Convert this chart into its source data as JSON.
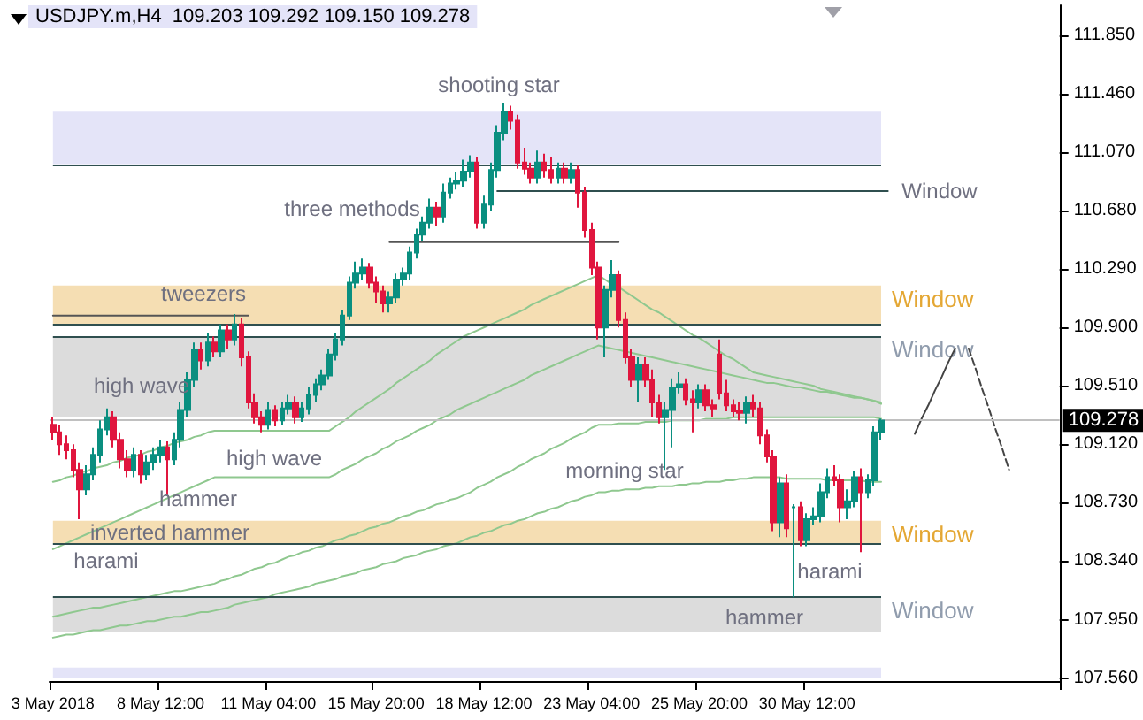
{
  "chart_data": {
    "type": "candlestick",
    "title": "USDJPY.m,H4  109.203 109.292 109.150 109.278",
    "categories": [
      "3 May 2018",
      null,
      null,
      null,
      null,
      null,
      null,
      null,
      null,
      null,
      null,
      null,
      null,
      null,
      null,
      null,
      "8 May 12:00",
      null,
      null,
      null,
      null,
      null,
      null,
      null,
      null,
      null,
      null,
      null,
      null,
      null,
      null,
      null,
      "11 May 04:00",
      null,
      null,
      null,
      null,
      null,
      null,
      null,
      null,
      null,
      null,
      null,
      null,
      null,
      null,
      null,
      "15 May 20:00",
      null,
      null,
      null,
      null,
      null,
      null,
      null,
      null,
      null,
      null,
      null,
      null,
      null,
      null,
      null,
      "18 May 12:00",
      null,
      null,
      null,
      null,
      null,
      null,
      null,
      null,
      null,
      null,
      null,
      null,
      null,
      null,
      null,
      "23 May 04:00",
      null,
      null,
      null,
      null,
      null,
      null,
      null,
      null,
      null,
      null,
      null,
      null,
      null,
      null,
      null,
      "25 May 20:00",
      null,
      null,
      null,
      null,
      null,
      null,
      null,
      null,
      null,
      null,
      null,
      null,
      null,
      null,
      null,
      "30 May 12:00",
      null,
      null,
      null,
      null,
      null,
      null,
      null,
      null,
      null,
      null,
      null,
      null,
      null,
      null,
      null,
      null,
      null,
      null,
      null,
      null,
      null,
      null,
      null,
      null,
      null,
      null,
      null,
      null,
      null,
      null,
      null,
      null,
      null,
      null,
      null,
      null,
      null
    ],
    "ohlc": [
      [
        109.25,
        109.3,
        109.15,
        109.2
      ],
      [
        109.2,
        109.25,
        109.05,
        109.12
      ],
      [
        109.12,
        109.18,
        109.02,
        109.08
      ],
      [
        109.08,
        109.12,
        108.9,
        108.95
      ],
      [
        108.95,
        109.0,
        108.62,
        108.82
      ],
      [
        108.82,
        108.98,
        108.78,
        108.92
      ],
      [
        108.92,
        109.1,
        108.88,
        109.05
      ],
      [
        109.05,
        109.28,
        109.0,
        109.22
      ],
      [
        109.22,
        109.36,
        109.18,
        109.3
      ],
      [
        109.3,
        109.34,
        109.1,
        109.15
      ],
      [
        109.15,
        109.2,
        108.96,
        109.02
      ],
      [
        109.02,
        109.08,
        108.9,
        108.95
      ],
      [
        108.95,
        109.1,
        108.9,
        109.05
      ],
      [
        109.05,
        109.08,
        108.86,
        108.92
      ],
      [
        108.92,
        109.05,
        108.88,
        109.0
      ],
      [
        109.0,
        109.1,
        108.95,
        109.05
      ],
      [
        109.05,
        109.15,
        109.0,
        109.1
      ],
      [
        109.1,
        109.14,
        108.78,
        109.02
      ],
      [
        109.02,
        109.2,
        108.98,
        109.15
      ],
      [
        109.15,
        109.4,
        109.1,
        109.35
      ],
      [
        109.35,
        109.6,
        109.3,
        109.55
      ],
      [
        109.55,
        109.8,
        109.5,
        109.75
      ],
      [
        109.75,
        109.8,
        109.62,
        109.68
      ],
      [
        109.68,
        109.86,
        109.64,
        109.8
      ],
      [
        109.8,
        109.84,
        109.7,
        109.74
      ],
      [
        109.74,
        109.92,
        109.7,
        109.88
      ],
      [
        109.88,
        109.92,
        109.76,
        109.82
      ],
      [
        109.82,
        109.99,
        109.78,
        109.92
      ],
      [
        109.92,
        109.96,
        109.64,
        109.7
      ],
      [
        109.7,
        109.74,
        109.36,
        109.4
      ],
      [
        109.4,
        109.46,
        109.26,
        109.3
      ],
      [
        109.3,
        109.34,
        109.2,
        109.25
      ],
      [
        109.25,
        109.4,
        109.22,
        109.35
      ],
      [
        109.35,
        109.38,
        109.24,
        109.28
      ],
      [
        109.28,
        109.4,
        109.25,
        109.36
      ],
      [
        109.36,
        109.45,
        109.32,
        109.4
      ],
      [
        109.4,
        109.44,
        109.26,
        109.3
      ],
      [
        109.3,
        109.4,
        109.27,
        109.36
      ],
      [
        109.36,
        109.5,
        109.32,
        109.45
      ],
      [
        109.45,
        109.56,
        109.4,
        109.52
      ],
      [
        109.52,
        109.62,
        109.48,
        109.58
      ],
      [
        109.58,
        109.76,
        109.55,
        109.72
      ],
      [
        109.72,
        109.86,
        109.68,
        109.82
      ],
      [
        109.82,
        110.02,
        109.78,
        109.98
      ],
      [
        109.98,
        110.24,
        109.95,
        110.2
      ],
      [
        110.2,
        110.34,
        110.16,
        110.26
      ],
      [
        110.26,
        110.36,
        110.22,
        110.3
      ],
      [
        110.3,
        110.33,
        110.16,
        110.2
      ],
      [
        110.2,
        110.24,
        110.06,
        110.14
      ],
      [
        110.14,
        110.18,
        110.0,
        110.06
      ],
      [
        110.06,
        110.14,
        110.0,
        110.1
      ],
      [
        110.1,
        110.26,
        110.06,
        110.22
      ],
      [
        110.22,
        110.3,
        110.18,
        110.26
      ],
      [
        110.26,
        110.44,
        110.22,
        110.4
      ],
      [
        110.4,
        110.56,
        110.36,
        110.52
      ],
      [
        110.52,
        110.64,
        110.48,
        110.6
      ],
      [
        110.6,
        110.76,
        110.56,
        110.7
      ],
      [
        110.7,
        110.74,
        110.58,
        110.64
      ],
      [
        110.64,
        110.86,
        110.6,
        110.8
      ],
      [
        110.8,
        110.9,
        110.76,
        110.86
      ],
      [
        110.86,
        110.94,
        110.82,
        110.88
      ],
      [
        110.88,
        111.02,
        110.84,
        110.94
      ],
      [
        110.94,
        111.05,
        110.9,
        111.0
      ],
      [
        111.0,
        111.04,
        110.56,
        110.6
      ],
      [
        110.6,
        110.78,
        110.56,
        110.72
      ],
      [
        110.72,
        111.0,
        110.68,
        110.95
      ],
      [
        110.95,
        111.25,
        110.9,
        111.2
      ],
      [
        111.2,
        111.4,
        111.15,
        111.34
      ],
      [
        111.34,
        111.38,
        111.22,
        111.28
      ],
      [
        111.28,
        111.32,
        110.96,
        111.0
      ],
      [
        111.0,
        111.1,
        110.92,
        110.96
      ],
      [
        110.96,
        111.0,
        110.86,
        110.9
      ],
      [
        110.9,
        111.08,
        110.86,
        111.0
      ],
      [
        111.0,
        111.06,
        110.9,
        110.95
      ],
      [
        110.95,
        111.04,
        110.86,
        110.9
      ],
      [
        110.9,
        111.0,
        110.86,
        110.96
      ],
      [
        110.96,
        111.0,
        110.86,
        110.9
      ],
      [
        110.9,
        111.0,
        110.86,
        110.95
      ],
      [
        110.95,
        110.98,
        110.7,
        110.8
      ],
      [
        110.8,
        110.84,
        110.5,
        110.55
      ],
      [
        110.55,
        110.6,
        110.25,
        110.3
      ],
      [
        110.3,
        110.34,
        109.82,
        109.9
      ],
      [
        109.9,
        110.18,
        109.7,
        110.15
      ],
      [
        110.15,
        110.35,
        110.1,
        110.25
      ],
      [
        110.25,
        110.28,
        109.9,
        109.95
      ],
      [
        109.95,
        110.0,
        109.66,
        109.7
      ],
      [
        109.7,
        109.76,
        109.5,
        109.55
      ],
      [
        109.55,
        109.7,
        109.4,
        109.65
      ],
      [
        109.65,
        109.7,
        109.5,
        109.55
      ],
      [
        109.55,
        109.62,
        109.3,
        109.4
      ],
      [
        109.4,
        109.45,
        109.26,
        109.3
      ],
      [
        109.3,
        109.4,
        108.95,
        109.35
      ],
      [
        109.35,
        109.56,
        109.1,
        109.5
      ],
      [
        109.5,
        109.6,
        109.46,
        109.52
      ],
      [
        109.52,
        109.56,
        109.38,
        109.42
      ],
      [
        109.42,
        109.48,
        109.2,
        109.4
      ],
      [
        109.4,
        109.52,
        109.36,
        109.48
      ],
      [
        109.48,
        109.52,
        109.34,
        109.38
      ],
      [
        109.38,
        109.42,
        109.3,
        109.36
      ],
      [
        109.72,
        109.82,
        109.42,
        109.46
      ],
      [
        109.46,
        109.55,
        109.34,
        109.38
      ],
      [
        109.38,
        109.42,
        109.3,
        109.34
      ],
      [
        109.34,
        109.4,
        109.28,
        109.33
      ],
      [
        109.33,
        109.44,
        109.26,
        109.4
      ],
      [
        109.4,
        109.45,
        109.3,
        109.36
      ],
      [
        109.36,
        109.4,
        109.12,
        109.18
      ],
      [
        109.18,
        109.22,
        109.0,
        109.04
      ],
      [
        109.04,
        109.08,
        108.54,
        108.6
      ],
      [
        108.6,
        108.9,
        108.5,
        108.86
      ],
      [
        108.86,
        108.92,
        108.5,
        108.56
      ],
      [
        108.7,
        108.72,
        108.1,
        108.7
      ],
      [
        108.7,
        108.74,
        108.44,
        108.48
      ],
      [
        108.48,
        108.66,
        108.44,
        108.62
      ],
      [
        108.62,
        108.7,
        108.58,
        108.64
      ],
      [
        108.64,
        108.86,
        108.6,
        108.8
      ],
      [
        108.8,
        108.96,
        108.76,
        108.9
      ],
      [
        108.9,
        108.98,
        108.84,
        108.88
      ],
      [
        108.88,
        108.92,
        108.6,
        108.7
      ],
      [
        108.7,
        108.82,
        108.62,
        108.74
      ],
      [
        108.74,
        108.94,
        108.7,
        108.9
      ],
      [
        108.9,
        108.96,
        108.4,
        108.8
      ],
      [
        108.8,
        108.92,
        108.76,
        108.88
      ],
      [
        108.88,
        109.24,
        108.84,
        109.2
      ],
      [
        109.203,
        109.292,
        109.15,
        109.278
      ],
      null,
      null,
      null,
      null,
      null,
      null,
      null,
      null,
      null,
      null,
      null,
      null,
      null,
      null,
      null,
      null,
      null,
      null,
      null,
      null,
      null,
      null,
      null,
      null,
      null,
      null
    ],
    "series": [
      {
        "type": "line",
        "color": "#8fc88f",
        "values": [
          108.87,
          108.88,
          108.9,
          108.91,
          108.93,
          108.94,
          108.96,
          108.97,
          108.98,
          109.0,
          109.01,
          109.03,
          109.04,
          109.05,
          109.07,
          109.08,
          109.1,
          109.11,
          109.13,
          109.14,
          109.15,
          109.17,
          109.18,
          109.2,
          109.21,
          109.21,
          109.21,
          109.21,
          109.21,
          109.21,
          109.21,
          109.21,
          109.21,
          109.21,
          109.21,
          109.21,
          109.21,
          109.21,
          109.21,
          109.21,
          109.21,
          109.21,
          109.24,
          109.27,
          109.3,
          109.34,
          109.37,
          109.4,
          109.43,
          109.46,
          109.49,
          109.53,
          109.56,
          109.59,
          109.62,
          109.65,
          109.68,
          109.72,
          109.75,
          109.78,
          109.81,
          109.84,
          109.86,
          109.88,
          109.9,
          109.92,
          109.94,
          109.96,
          109.98,
          110.0,
          110.02,
          110.05,
          110.07,
          110.09,
          110.11,
          110.13,
          110.15,
          110.17,
          110.19,
          110.21,
          110.23,
          110.25,
          110.22,
          110.19,
          110.17,
          110.14,
          110.11,
          110.08,
          110.05,
          110.02,
          110.0,
          109.97,
          109.94,
          109.91,
          109.88,
          109.85,
          109.83,
          109.8,
          109.77,
          109.74,
          109.71,
          109.69,
          109.66,
          109.63,
          109.6,
          109.59,
          109.58,
          109.57,
          109.56,
          109.55,
          109.54,
          109.53,
          109.52,
          109.51,
          109.49,
          109.48,
          109.47,
          109.46,
          109.45,
          109.44,
          109.43,
          109.42,
          109.41,
          109.4,
          null,
          null,
          null,
          null,
          null,
          null,
          null,
          null,
          null,
          null,
          null,
          null,
          null,
          null,
          null,
          null,
          null,
          null,
          null,
          null,
          null,
          null,
          null,
          null,
          null,
          null
        ]
      },
      {
        "type": "line",
        "color": "#8fc88f",
        "values": [
          108.42,
          108.44,
          108.46,
          108.48,
          108.5,
          108.52,
          108.54,
          108.56,
          108.58,
          108.6,
          108.62,
          108.64,
          108.66,
          108.68,
          108.7,
          108.72,
          108.74,
          108.76,
          108.78,
          108.8,
          108.82,
          108.84,
          108.86,
          108.88,
          108.9,
          108.9,
          108.9,
          108.9,
          108.9,
          108.9,
          108.9,
          108.9,
          108.9,
          108.9,
          108.9,
          108.9,
          108.9,
          108.9,
          108.9,
          108.9,
          108.9,
          108.9,
          108.92,
          108.95,
          108.97,
          108.99,
          109.02,
          109.04,
          109.06,
          109.09,
          109.11,
          109.14,
          109.16,
          109.18,
          109.21,
          109.23,
          109.25,
          109.28,
          109.3,
          109.32,
          109.35,
          109.37,
          109.39,
          109.41,
          109.43,
          109.45,
          109.47,
          109.49,
          109.51,
          109.53,
          109.55,
          109.58,
          109.6,
          109.62,
          109.64,
          109.66,
          109.68,
          109.7,
          109.72,
          109.74,
          109.76,
          109.78,
          109.77,
          109.76,
          109.75,
          109.74,
          109.73,
          109.72,
          109.71,
          109.7,
          109.69,
          109.68,
          109.67,
          109.66,
          109.65,
          109.64,
          109.63,
          109.62,
          109.61,
          109.6,
          109.59,
          109.58,
          109.57,
          109.56,
          109.55,
          109.54,
          109.53,
          109.53,
          109.52,
          109.51,
          109.5,
          109.5,
          109.49,
          109.48,
          109.47,
          109.47,
          109.46,
          109.45,
          109.44,
          109.43,
          109.43,
          109.42,
          109.41,
          109.39,
          null,
          null,
          null,
          null,
          null,
          null,
          null,
          null,
          null,
          null,
          null,
          null,
          null,
          null,
          null,
          null,
          null,
          null,
          null,
          null,
          null,
          null,
          null,
          null,
          null,
          null
        ]
      },
      {
        "type": "line",
        "color": "#8fc88f",
        "values": [
          107.97,
          107.98,
          107.99,
          108.0,
          108.01,
          108.02,
          108.03,
          108.03,
          108.04,
          108.05,
          108.06,
          108.07,
          108.08,
          108.09,
          108.1,
          108.11,
          108.12,
          108.13,
          108.14,
          108.14,
          108.15,
          108.16,
          108.17,
          108.18,
          108.19,
          108.21,
          108.22,
          108.24,
          108.25,
          108.27,
          108.29,
          108.3,
          108.32,
          108.33,
          108.35,
          108.37,
          108.38,
          108.4,
          108.41,
          108.43,
          108.44,
          108.46,
          108.48,
          108.49,
          108.51,
          108.52,
          108.54,
          108.56,
          108.57,
          108.59,
          108.6,
          108.62,
          108.64,
          108.65,
          108.67,
          108.68,
          108.7,
          108.72,
          108.73,
          108.75,
          108.76,
          108.78,
          108.8,
          108.83,
          108.85,
          108.87,
          108.9,
          108.92,
          108.94,
          108.97,
          108.99,
          109.02,
          109.04,
          109.06,
          109.09,
          109.11,
          109.13,
          109.16,
          109.18,
          109.2,
          109.23,
          109.25,
          109.25,
          109.25,
          109.26,
          109.26,
          109.26,
          109.26,
          109.27,
          109.27,
          109.27,
          109.27,
          109.28,
          109.28,
          109.28,
          109.28,
          109.28,
          109.29,
          109.29,
          109.29,
          109.29,
          109.3,
          109.3,
          109.3,
          109.3,
          109.3,
          109.3,
          109.3,
          109.3,
          109.3,
          109.3,
          109.3,
          109.3,
          109.3,
          109.3,
          109.3,
          109.3,
          109.3,
          109.3,
          109.3,
          109.3,
          109.3,
          109.3,
          109.29,
          null,
          null,
          null,
          null,
          null,
          null,
          null,
          null,
          null,
          null,
          null,
          null,
          null,
          null,
          null,
          null,
          null,
          null,
          null,
          null,
          null,
          null,
          null,
          null,
          null,
          null
        ]
      },
      {
        "type": "line",
        "color": "#8fc88f",
        "values": [
          107.83,
          107.84,
          107.85,
          107.85,
          107.86,
          107.87,
          107.88,
          107.88,
          107.89,
          107.9,
          107.91,
          107.91,
          107.92,
          107.93,
          107.94,
          107.94,
          107.95,
          107.96,
          107.97,
          107.97,
          107.98,
          107.99,
          108.0,
          108.0,
          108.01,
          108.02,
          108.03,
          108.05,
          108.06,
          108.07,
          108.08,
          108.09,
          108.1,
          108.12,
          108.13,
          108.14,
          108.15,
          108.16,
          108.17,
          108.19,
          108.2,
          108.21,
          108.22,
          108.24,
          108.25,
          108.26,
          108.28,
          108.29,
          108.3,
          108.32,
          108.33,
          108.34,
          108.36,
          108.37,
          108.38,
          108.4,
          108.41,
          108.42,
          108.44,
          108.45,
          108.46,
          108.48,
          108.5,
          108.51,
          108.53,
          108.54,
          108.56,
          108.58,
          108.59,
          108.61,
          108.62,
          108.64,
          108.66,
          108.67,
          108.69,
          108.7,
          108.72,
          108.74,
          108.75,
          108.77,
          108.78,
          108.8,
          108.8,
          108.81,
          108.81,
          108.82,
          108.82,
          108.82,
          108.83,
          108.83,
          108.84,
          108.84,
          108.84,
          108.85,
          108.85,
          108.86,
          108.86,
          108.87,
          108.87,
          108.87,
          108.88,
          108.88,
          108.89,
          108.89,
          108.9,
          108.9,
          108.9,
          108.9,
          108.9,
          108.89,
          108.89,
          108.89,
          108.89,
          108.89,
          108.89,
          108.88,
          108.88,
          108.88,
          108.88,
          108.88,
          108.88,
          108.87,
          108.87,
          108.87,
          null,
          null,
          null,
          null,
          null,
          null,
          null,
          null,
          null,
          null,
          null,
          null,
          null,
          null,
          null,
          null,
          null,
          null,
          null,
          null,
          null,
          null,
          null,
          null,
          null,
          null
        ]
      },
      {
        "type": "line",
        "color": "#555555",
        "values": [
          109.98,
          109.98,
          109.98,
          109.98,
          109.98,
          109.98,
          109.98,
          109.98,
          109.98,
          109.98,
          109.98,
          109.98,
          109.98,
          109.98,
          109.98,
          109.98,
          109.98,
          109.98,
          109.98,
          109.98,
          109.98,
          109.98,
          109.98,
          109.98,
          109.98,
          109.98,
          109.98,
          109.98,
          109.98,
          109.98,
          null,
          null,
          null,
          null,
          null,
          null,
          null,
          null,
          null,
          null,
          null,
          null,
          null,
          null,
          null,
          null,
          null,
          null,
          null,
          null,
          null,
          null,
          null,
          null,
          null,
          null,
          null,
          null,
          null,
          null,
          null,
          null,
          null,
          null,
          null,
          null,
          null,
          null,
          null,
          null,
          null,
          null,
          null,
          null,
          null,
          null,
          null,
          null,
          null,
          null,
          null,
          null,
          null,
          null,
          null,
          null,
          null,
          null,
          null,
          null,
          null,
          null,
          null,
          null,
          null,
          null,
          null,
          null,
          null,
          null,
          null,
          null,
          null,
          null,
          null,
          null,
          null,
          null,
          null,
          null,
          null,
          null,
          null,
          null,
          null,
          null,
          null,
          null,
          null,
          null,
          null,
          null,
          null,
          null,
          null,
          null,
          null,
          null,
          null,
          null,
          null,
          null,
          null,
          null,
          null,
          null,
          null,
          null,
          null,
          null,
          null,
          null,
          null,
          null,
          null,
          null,
          null,
          null,
          null,
          null
        ]
      },
      {
        "type": "line",
        "color": "#555555",
        "values": [
          null,
          null,
          null,
          null,
          null,
          null,
          null,
          null,
          null,
          null,
          null,
          null,
          null,
          null,
          null,
          null,
          null,
          null,
          null,
          null,
          null,
          null,
          null,
          null,
          null,
          null,
          null,
          null,
          null,
          null,
          null,
          null,
          null,
          null,
          null,
          null,
          null,
          null,
          null,
          null,
          null,
          null,
          null,
          null,
          null,
          null,
          null,
          null,
          null,
          null,
          110.47,
          110.47,
          110.47,
          110.47,
          110.47,
          110.47,
          110.47,
          110.47,
          110.47,
          110.47,
          110.47,
          110.47,
          110.47,
          110.47,
          110.47,
          110.47,
          110.47,
          110.47,
          110.47,
          110.47,
          110.47,
          110.47,
          110.47,
          110.47,
          110.47,
          110.47,
          110.47,
          110.47,
          110.47,
          110.47,
          110.47,
          110.47,
          110.47,
          110.47,
          110.47,
          null,
          null,
          null,
          null,
          null,
          null,
          null,
          null,
          null,
          null,
          null,
          null,
          null,
          null,
          null,
          null,
          null,
          null,
          null,
          null,
          null,
          null,
          null,
          null,
          null,
          null,
          null,
          null,
          null,
          null,
          null,
          null,
          null,
          null,
          null,
          null,
          null,
          null,
          null,
          null,
          null,
          null,
          null,
          null,
          null,
          null,
          null,
          null,
          null,
          null,
          null,
          null,
          null,
          null,
          null,
          null,
          null,
          null,
          null,
          null,
          null,
          null,
          null,
          null,
          null
        ]
      },
      {
        "type": "line",
        "color": "#2f4f4f",
        "values": [
          null,
          null,
          null,
          null,
          null,
          null,
          null,
          null,
          null,
          null,
          null,
          null,
          null,
          null,
          null,
          null,
          null,
          null,
          null,
          null,
          null,
          null,
          null,
          null,
          null,
          null,
          null,
          null,
          null,
          null,
          null,
          null,
          null,
          null,
          null,
          null,
          null,
          null,
          null,
          null,
          null,
          null,
          null,
          null,
          null,
          null,
          null,
          null,
          null,
          null,
          null,
          null,
          null,
          null,
          null,
          null,
          null,
          null,
          null,
          null,
          null,
          null,
          null,
          null,
          null,
          null,
          110.81,
          110.81,
          110.81,
          110.81,
          110.81,
          110.81,
          110.81,
          110.81,
          110.81,
          110.81,
          110.81,
          110.81,
          110.81,
          110.81,
          110.81,
          110.81,
          110.81,
          110.81,
          110.81,
          110.81,
          110.81,
          110.81,
          110.81,
          110.81,
          110.81,
          110.81,
          110.81,
          110.81,
          110.81,
          110.81,
          110.81,
          110.81,
          110.81,
          110.81,
          110.81,
          110.81,
          110.81,
          110.81,
          110.81,
          110.81,
          110.81,
          110.81,
          110.81,
          110.81,
          110.81,
          110.81,
          110.81,
          110.81,
          110.81,
          110.81,
          110.81,
          110.81,
          110.81,
          110.81,
          110.81,
          110.81,
          110.81,
          110.81,
          110.81,
          null,
          null,
          null,
          null,
          null,
          null,
          null,
          null,
          null,
          null,
          null,
          null,
          null,
          null,
          null,
          null,
          null,
          null,
          null,
          null,
          null,
          null,
          null,
          null,
          null
        ]
      },
      {
        "type": "line",
        "color": "#444444",
        "values": [
          null,
          null,
          null,
          null,
          null,
          null,
          null,
          null,
          null,
          null,
          null,
          null,
          null,
          null,
          null,
          null,
          null,
          null,
          null,
          null,
          null,
          null,
          null,
          null,
          null,
          null,
          null,
          null,
          null,
          null,
          null,
          null,
          null,
          null,
          null,
          null,
          null,
          null,
          null,
          null,
          null,
          null,
          null,
          null,
          null,
          null,
          null,
          null,
          null,
          null,
          null,
          null,
          null,
          null,
          null,
          null,
          null,
          null,
          null,
          null,
          null,
          null,
          null,
          null,
          null,
          null,
          null,
          null,
          null,
          null,
          null,
          null,
          null,
          null,
          null,
          null,
          null,
          null,
          null,
          null,
          null,
          null,
          null,
          null,
          null,
          null,
          null,
          null,
          null,
          null,
          null,
          null,
          null,
          null,
          null,
          null,
          null,
          null,
          null,
          null,
          null,
          null,
          null,
          null,
          null,
          null,
          null,
          null,
          null,
          null,
          null,
          null,
          null,
          null,
          null,
          null,
          null,
          null,
          null,
          null,
          null,
          null,
          null,
          null,
          null,
          null,
          null,
          null,
          109.19,
          109.29,
          109.38,
          109.48,
          109.57,
          109.67,
          109.76,
          null,
          null,
          null,
          null,
          null,
          null,
          null,
          null,
          null,
          null,
          null,
          null,
          null,
          null,
          null
        ]
      },
      {
        "type": "line",
        "color": "#444444",
        "line_style": "dashed",
        "values": [
          null,
          null,
          null,
          null,
          null,
          null,
          null,
          null,
          null,
          null,
          null,
          null,
          null,
          null,
          null,
          null,
          null,
          null,
          null,
          null,
          null,
          null,
          null,
          null,
          null,
          null,
          null,
          null,
          null,
          null,
          null,
          null,
          null,
          null,
          null,
          null,
          null,
          null,
          null,
          null,
          null,
          null,
          null,
          null,
          null,
          null,
          null,
          null,
          null,
          null,
          null,
          null,
          null,
          null,
          null,
          null,
          null,
          null,
          null,
          null,
          null,
          null,
          null,
          null,
          null,
          null,
          null,
          null,
          null,
          null,
          null,
          null,
          null,
          null,
          null,
          null,
          null,
          null,
          null,
          null,
          null,
          null,
          null,
          null,
          null,
          null,
          null,
          null,
          null,
          null,
          null,
          null,
          null,
          null,
          null,
          null,
          null,
          null,
          null,
          null,
          null,
          null,
          null,
          null,
          null,
          null,
          null,
          null,
          null,
          null,
          null,
          null,
          null,
          null,
          null,
          null,
          null,
          null,
          null,
          null,
          null,
          null,
          null,
          null,
          null,
          null,
          null,
          null,
          null,
          null,
          null,
          null,
          null,
          null,
          null,
          null,
          109.76,
          109.63,
          109.49,
          109.36,
          109.22,
          109.09,
          108.95,
          null,
          null,
          null,
          null,
          null,
          null,
          null
        ]
      }
    ],
    "bands": [
      {
        "axis": "y",
        "from": 110.99,
        "to": 111.34,
        "color": "#e4e4f8"
      },
      {
        "axis": "y",
        "from": 109.92,
        "to": 110.18,
        "label": "Window",
        "color": "#f5deb3"
      },
      {
        "axis": "y",
        "from": 109.3,
        "to": 109.84,
        "label": "Window",
        "color": "#dcdcdc"
      },
      {
        "axis": "y",
        "from": 108.46,
        "to": 108.61,
        "label": "Window",
        "color": "#f5deb3"
      },
      {
        "axis": "y",
        "from": 107.87,
        "to": 108.1,
        "label": "Window",
        "color": "#dcdcdc"
      },
      {
        "axis": "y",
        "from": 107.56,
        "to": 107.63,
        "color": "#e4e4f8"
      }
    ],
    "ref_lines": [
      {
        "axis": "y",
        "value": 110.99,
        "color": "#2f4f4f"
      },
      {
        "axis": "y",
        "value": 109.92,
        "color": "#2f4f4f"
      },
      {
        "axis": "y",
        "value": 109.84,
        "color": "#2f4f4f"
      },
      {
        "axis": "y",
        "value": 108.46,
        "color": "#2f4f4f"
      },
      {
        "axis": "y",
        "value": 108.1,
        "color": "#2f4f4f"
      },
      {
        "axis": "y",
        "value": 109.278,
        "label": "109.278",
        "color": "#c0c0c0"
      }
    ],
    "annotations": [
      "shooting star",
      "three methods",
      "tweezers",
      "high wave",
      "high wave",
      "hammer",
      "inverted hammer",
      "harami",
      "morning star",
      "harami",
      "hammer",
      "Window"
    ],
    "ylim": [
      107.54,
      112.05
    ],
    "yticks": [
      {
        "value": 107.56,
        "label": "107.560"
      },
      {
        "value": 107.95,
        "label": "107.950"
      },
      {
        "value": 108.34,
        "label": "108.340"
      },
      {
        "value": 108.73,
        "label": "108.730"
      },
      {
        "value": 109.12,
        "label": "109.120"
      },
      {
        "value": 109.51,
        "label": "109.510"
      },
      {
        "value": 109.9,
        "label": "109.900"
      },
      {
        "value": 110.29,
        "label": "110.290"
      },
      {
        "value": 110.68,
        "label": "110.680"
      },
      {
        "value": 111.07,
        "label": "111.070"
      },
      {
        "value": 111.46,
        "label": "111.460"
      },
      {
        "value": 111.85,
        "label": "111.850"
      }
    ]
  }
}
